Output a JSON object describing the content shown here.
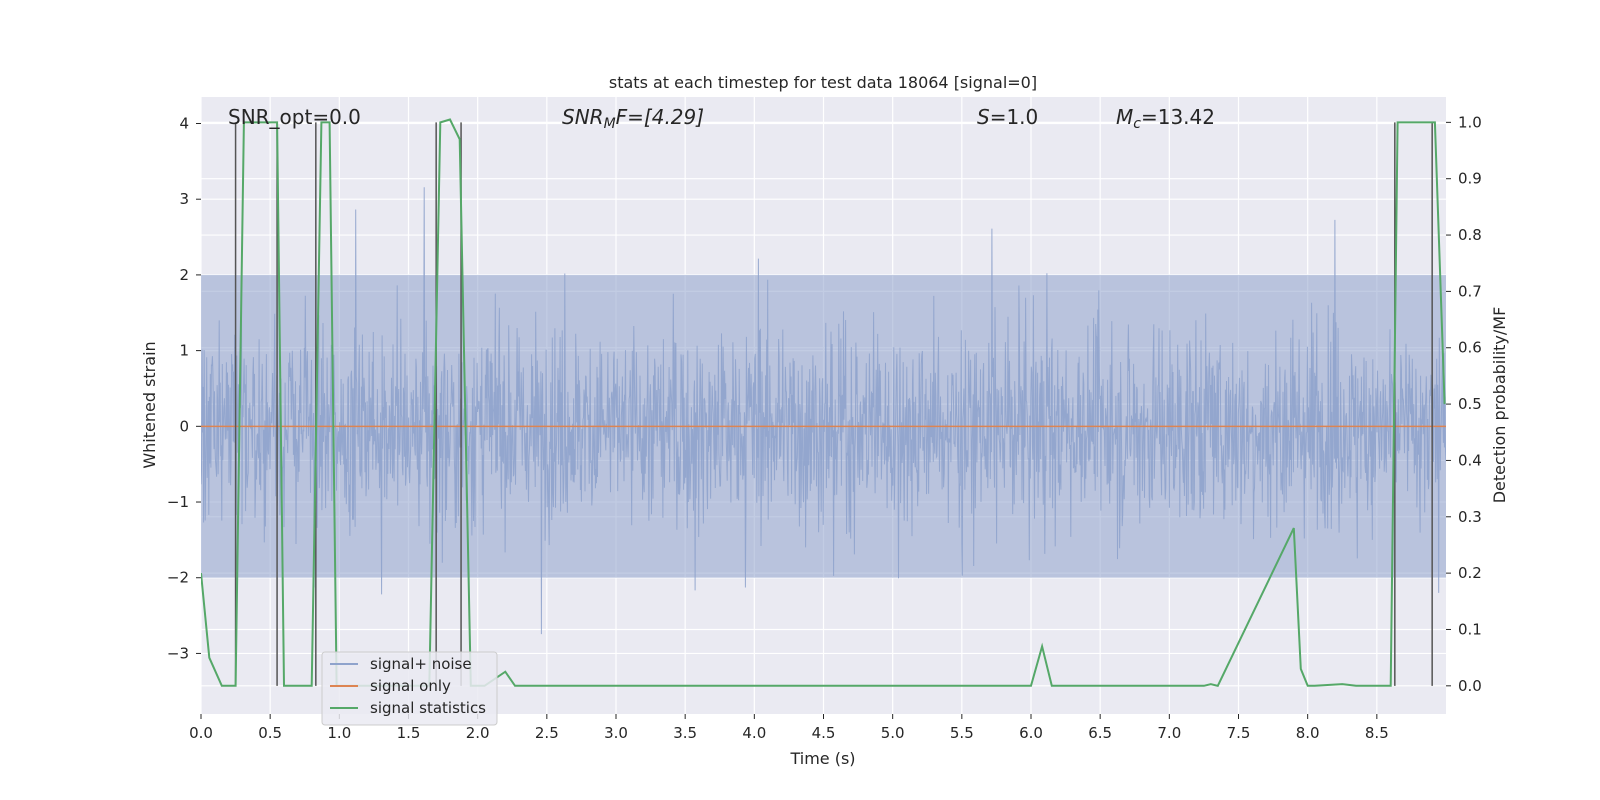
{
  "chart_data": {
    "type": "line",
    "title": "stats at each timestep for test data 18064 [signal=0]",
    "xlabel": "Time (s)",
    "ylabel_left": "Whitened strain",
    "ylabel_right": "Detection probability/MF",
    "xlim": [
      0.0,
      9.0
    ],
    "ylim_left": [
      -3.8,
      4.35
    ],
    "ylim_right": [
      -0.05,
      1.045
    ],
    "grid": true,
    "legend_placement": "lower-left",
    "x_ticks": [
      "0.0",
      "0.5",
      "1.0",
      "1.5",
      "2.0",
      "2.5",
      "3.0",
      "3.5",
      "4.0",
      "4.5",
      "5.0",
      "5.5",
      "6.0",
      "6.5",
      "7.0",
      "7.5",
      "8.0",
      "8.5"
    ],
    "y_left_ticks": [
      "−3",
      "−2",
      "−1",
      "0",
      "1",
      "2",
      "3",
      "4"
    ],
    "y_right_ticks": [
      "0.0",
      "0.1",
      "0.2",
      "0.3",
      "0.4",
      "0.5",
      "0.6",
      "0.7",
      "0.8",
      "0.9",
      "1.0"
    ],
    "annotations": {
      "snr_opt": "SNR_opt=0.0",
      "snr_mf_sym": "SNR",
      "snr_mf_sub": "M",
      "snr_mf_rest": "F=[4.29]",
      "s_sym": "S",
      "s_rest": "=1.0",
      "mc_sym": "M",
      "mc_sub": "c",
      "mc_rest": "=13.42"
    },
    "series": [
      {
        "name": "signal+ noise",
        "color": "#8fa3cc",
        "style": "noise",
        "x_range": [
          0.0,
          9.0
        ],
        "band": [
          -2.0,
          2.0
        ],
        "peak": [
          -3.4,
          3.9
        ]
      },
      {
        "name": "signal only",
        "color": "#dd8452",
        "x": [
          0.0,
          9.0
        ],
        "y": [
          0.0,
          0.0
        ]
      },
      {
        "name": "signal statistics",
        "color": "#55a868",
        "x": [
          0.0,
          0.06,
          0.15,
          0.25,
          0.31,
          0.55,
          0.6,
          0.7,
          0.8,
          0.87,
          0.93,
          0.98,
          1.03,
          1.65,
          1.73,
          1.8,
          1.87,
          1.95,
          2.05,
          2.2,
          2.27,
          3.0,
          4.0,
          5.0,
          6.0,
          6.08,
          6.15,
          7.25,
          7.3,
          7.35,
          7.9,
          7.95,
          8.0,
          8.05,
          8.25,
          8.35,
          8.45,
          8.6,
          8.65,
          8.72,
          8.92,
          8.99
        ],
        "y": [
          0.2,
          0.05,
          0.0,
          0.0,
          1.0,
          1.0,
          0.0,
          0.0,
          0.0,
          1.0,
          1.0,
          0.0,
          0.0,
          0.0,
          1.0,
          1.005,
          0.97,
          0.0,
          0.0,
          0.025,
          0.0,
          0.0,
          0.0,
          0.0,
          0.0,
          0.07,
          0.0,
          0.0,
          0.003,
          0.0,
          0.28,
          0.03,
          0.0,
          0.0,
          0.003,
          0.0,
          0.0,
          0.0,
          1.0,
          1.0,
          1.0,
          0.5
        ]
      }
    ],
    "vertical_markers_x": [
      0.25,
      0.55,
      0.83,
      1.7,
      1.88,
      8.63,
      8.9
    ]
  }
}
